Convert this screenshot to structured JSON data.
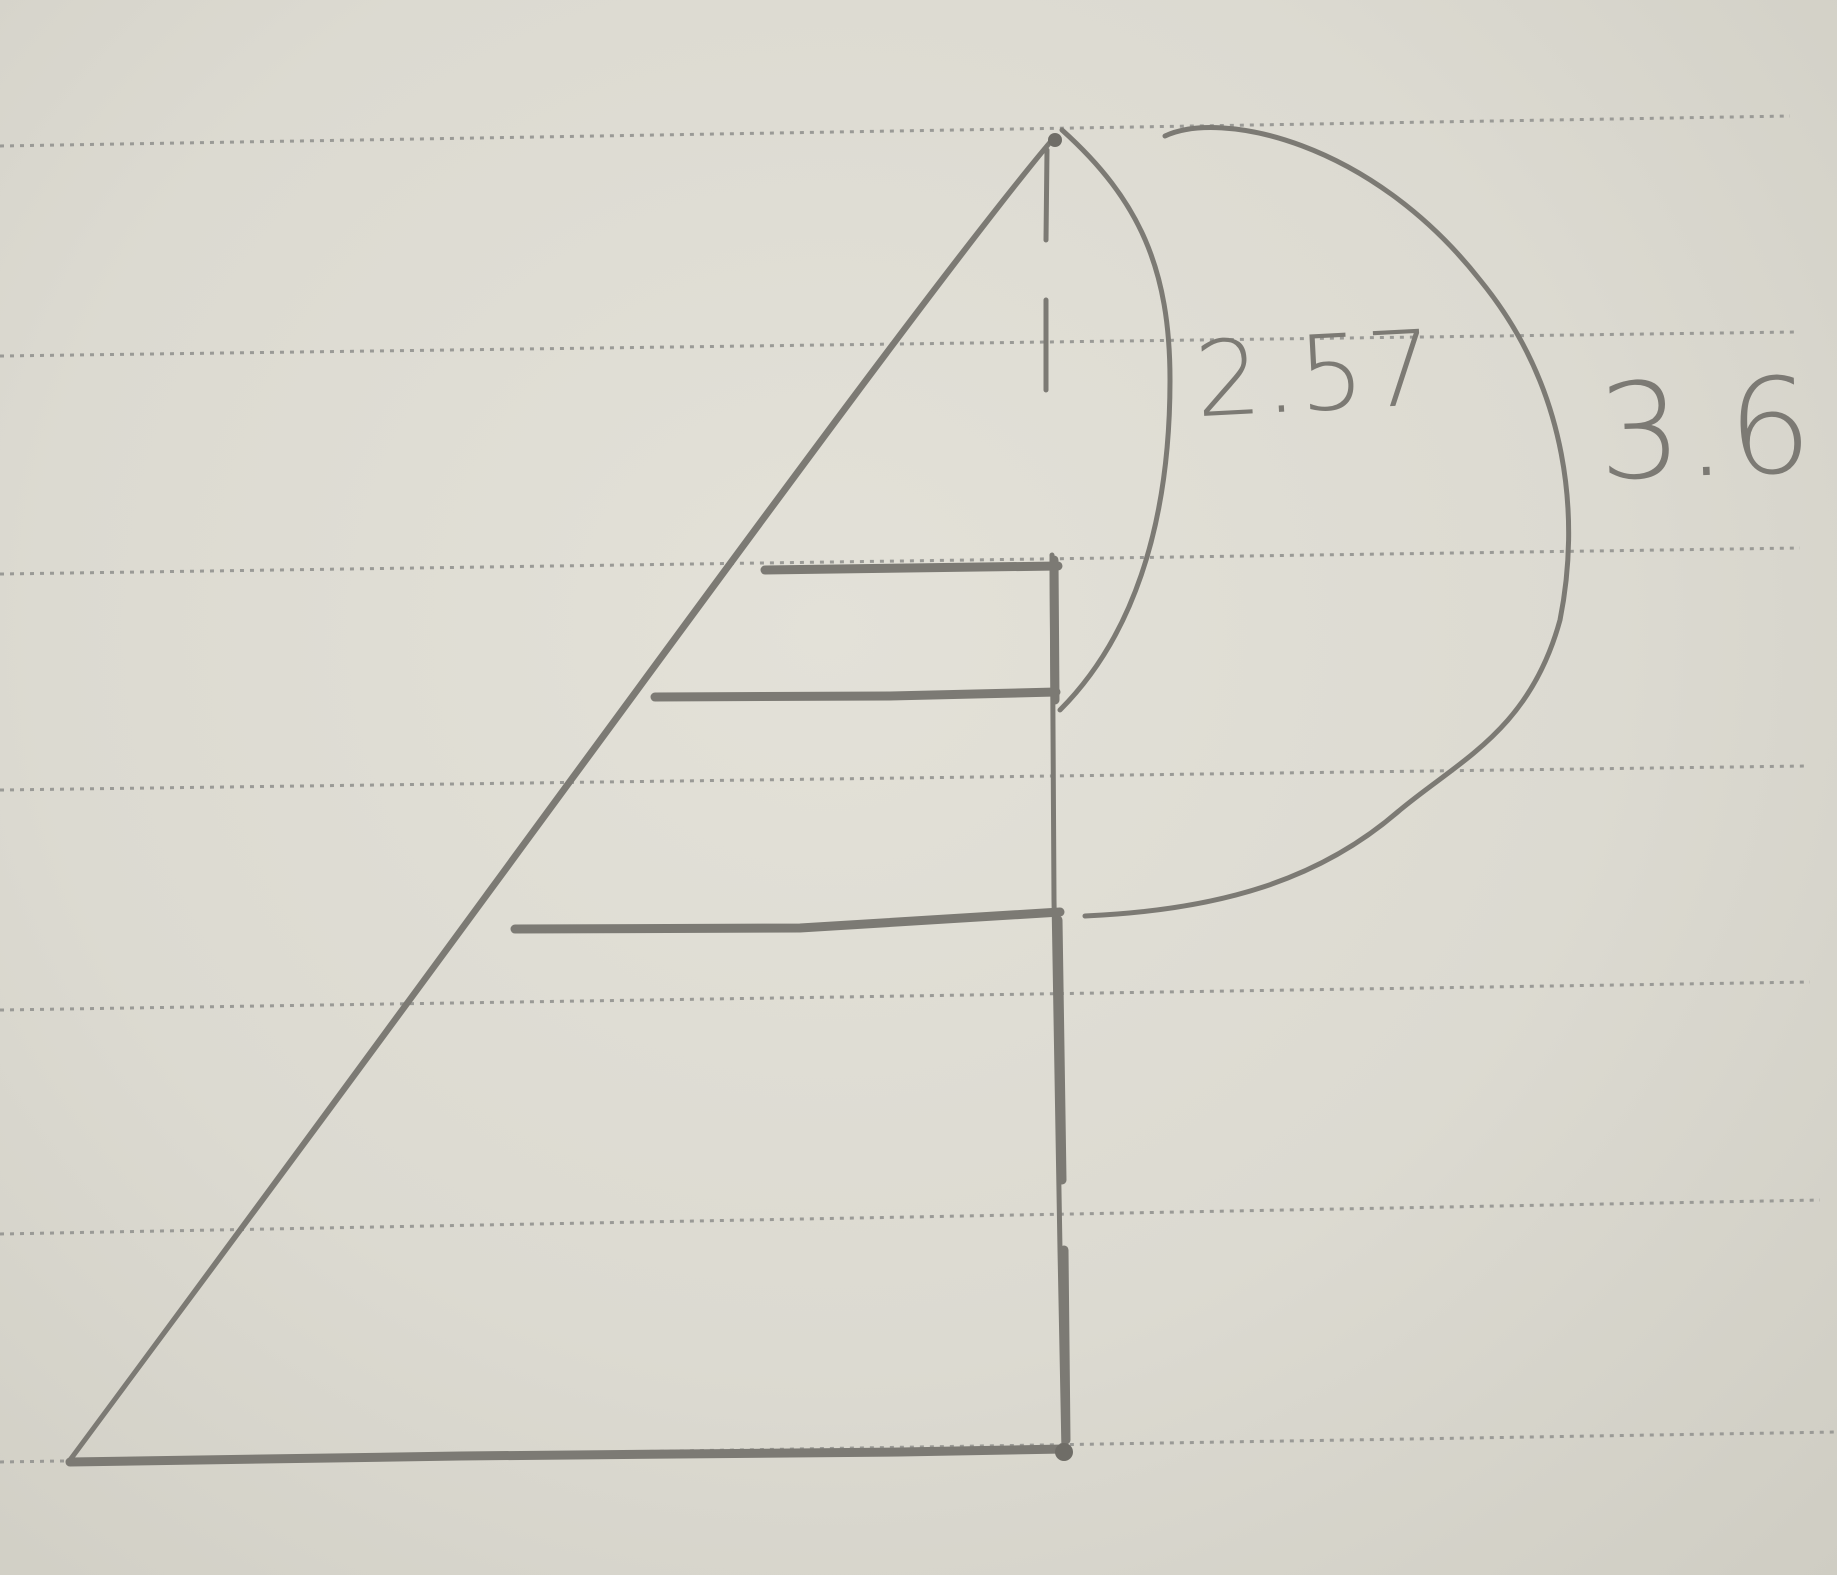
{
  "diagram": {
    "labels": {
      "inner_arc": "2.57",
      "outer_arc": "3.6"
    },
    "rung_count": 3
  }
}
